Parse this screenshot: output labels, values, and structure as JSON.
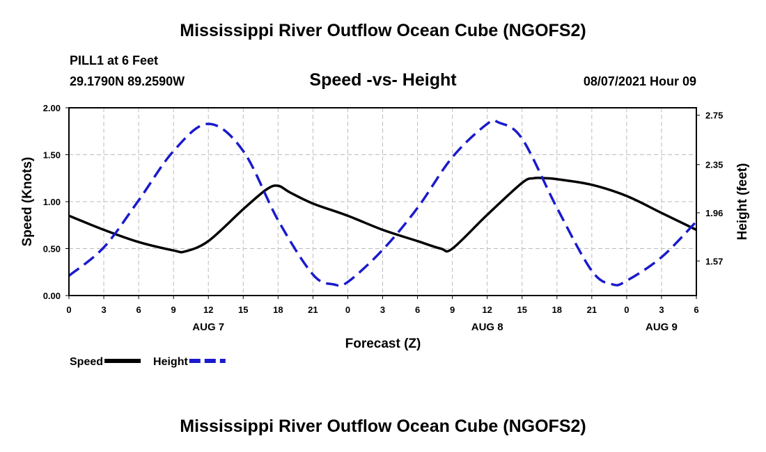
{
  "header": {
    "title": "Mississippi River Outflow Ocean Cube (NGOFS2)",
    "station": "PILL1 at 6 Feet",
    "coords": "29.1790N  89.2590W",
    "subtitle": "Speed -vs- Height",
    "datetime": "08/07/2021 Hour 09"
  },
  "footer": {
    "title": "Mississippi River Outflow Ocean Cube (NGOFS2)"
  },
  "chart_data": {
    "type": "line",
    "xlabel": "Forecast (Z)",
    "ylabel": "Speed (Knots)",
    "y2label": "Height (feet)",
    "x_range": [
      0,
      54
    ],
    "ylim": [
      0,
      2.0
    ],
    "y2lim": [
      1.29,
      2.81
    ],
    "x_ticks": [
      {
        "x": 0,
        "label": "0"
      },
      {
        "x": 3,
        "label": "3"
      },
      {
        "x": 6,
        "label": "6"
      },
      {
        "x": 9,
        "label": "9"
      },
      {
        "x": 12,
        "label": "12"
      },
      {
        "x": 15,
        "label": "15"
      },
      {
        "x": 18,
        "label": "18"
      },
      {
        "x": 21,
        "label": "21"
      },
      {
        "x": 24,
        "label": "0"
      },
      {
        "x": 27,
        "label": "3"
      },
      {
        "x": 30,
        "label": "6"
      },
      {
        "x": 33,
        "label": "9"
      },
      {
        "x": 36,
        "label": "12"
      },
      {
        "x": 39,
        "label": "15"
      },
      {
        "x": 42,
        "label": "18"
      },
      {
        "x": 45,
        "label": "21"
      },
      {
        "x": 48,
        "label": "0"
      },
      {
        "x": 51,
        "label": "3"
      },
      {
        "x": 54,
        "label": "6"
      }
    ],
    "y_ticks": [
      {
        "v": 0.0,
        "label": "0.00"
      },
      {
        "v": 0.5,
        "label": "0.50"
      },
      {
        "v": 1.0,
        "label": "1.00"
      },
      {
        "v": 1.5,
        "label": "1.50"
      },
      {
        "v": 2.0,
        "label": "2.00"
      }
    ],
    "y2_ticks": [
      {
        "v": 1.57,
        "label": "1.57"
      },
      {
        "v": 1.96,
        "label": "1.96"
      },
      {
        "v": 2.35,
        "label": "2.35"
      },
      {
        "v": 2.75,
        "label": "2.75"
      }
    ],
    "date_labels": [
      {
        "x": 12,
        "label": "AUG 7"
      },
      {
        "x": 36,
        "label": "AUG 8"
      },
      {
        "x": 51,
        "label": "AUG 9"
      }
    ],
    "series": [
      {
        "name": "Speed",
        "color": "#000000",
        "style": "solid",
        "axis": "left",
        "x": [
          0,
          3,
          6,
          9,
          10,
          12,
          15,
          17,
          18,
          19,
          21,
          24,
          27,
          30,
          32,
          33,
          36,
          39,
          40,
          41,
          42,
          45,
          48,
          51,
          54
        ],
        "values": [
          0.85,
          0.7,
          0.57,
          0.48,
          0.47,
          0.58,
          0.92,
          1.13,
          1.17,
          1.1,
          0.98,
          0.85,
          0.7,
          0.58,
          0.5,
          0.5,
          0.86,
          1.2,
          1.25,
          1.25,
          1.24,
          1.18,
          1.06,
          0.88,
          0.7
        ]
      },
      {
        "name": "Height",
        "color": "#1a1acc",
        "style": "dashed",
        "axis": "right",
        "x": [
          0,
          3,
          6,
          9,
          12,
          15,
          18,
          21,
          22.8,
          24,
          27,
          30,
          33,
          36,
          37,
          39,
          42,
          45,
          46.8,
          48,
          51,
          54
        ],
        "values": [
          1.45,
          1.68,
          2.06,
          2.46,
          2.68,
          2.46,
          1.9,
          1.46,
          1.38,
          1.4,
          1.66,
          2.0,
          2.41,
          2.68,
          2.69,
          2.56,
          2.0,
          1.49,
          1.38,
          1.41,
          1.6,
          1.89
        ]
      }
    ],
    "legend": [
      {
        "label": "Speed",
        "color": "#000000",
        "style": "solid"
      },
      {
        "label": "Height",
        "color": "#1a1acc",
        "style": "dashed"
      }
    ]
  }
}
